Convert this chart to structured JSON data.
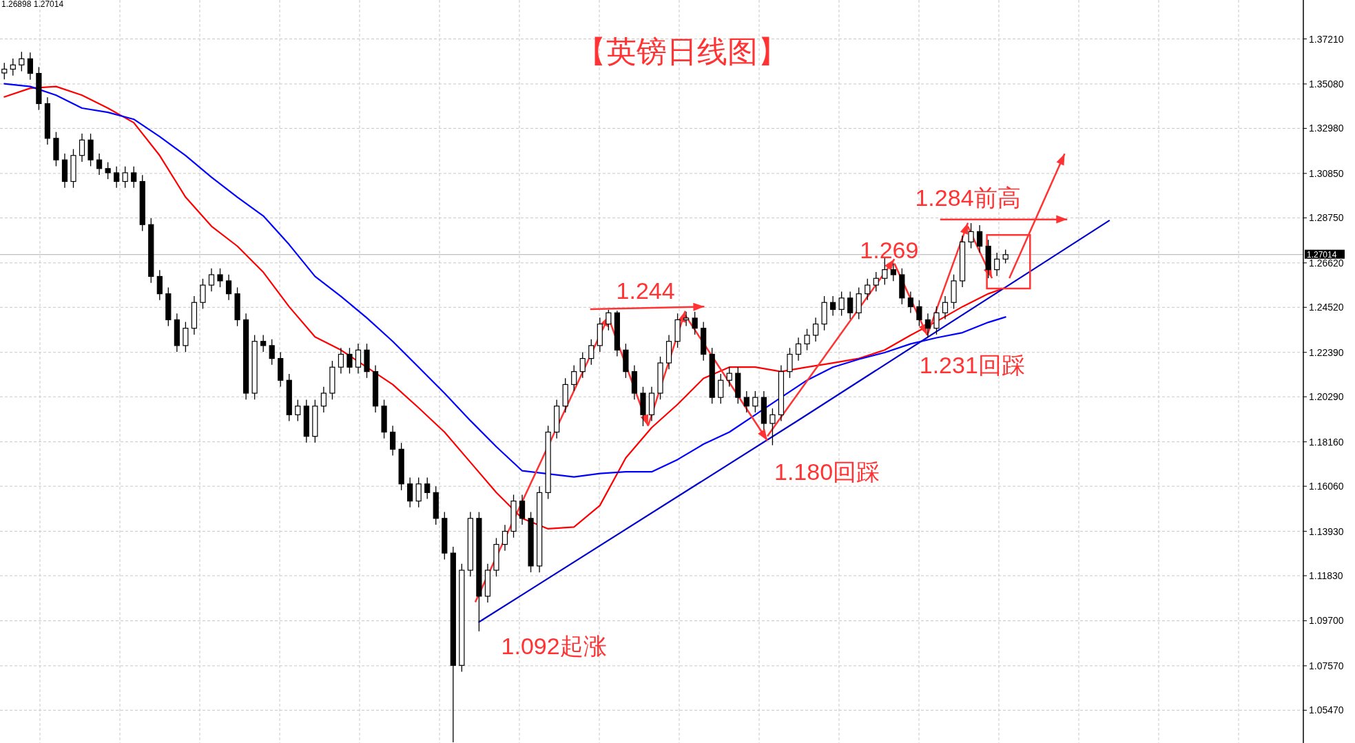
{
  "chart_data": {
    "type": "candlestick",
    "title": "【英镑日线图】",
    "categories": [
      null,
      null,
      null,
      null,
      null,
      null,
      null,
      null,
      null,
      null,
      null,
      null,
      null,
      null,
      null,
      null,
      null,
      null,
      null,
      null,
      null,
      null,
      null,
      null,
      null,
      null,
      null,
      null,
      null,
      null,
      null,
      null,
      null,
      null,
      null,
      null,
      null,
      null,
      null,
      null,
      null,
      null,
      null,
      null,
      null,
      null,
      null,
      null,
      null,
      null,
      null,
      null,
      null,
      null,
      null,
      null,
      null,
      null,
      null,
      null,
      null,
      null,
      null,
      null,
      null,
      null,
      null,
      null,
      null,
      null,
      null,
      null,
      null,
      null,
      null,
      null,
      null,
      null,
      null,
      null,
      null,
      null,
      null,
      null,
      null,
      null,
      null,
      null,
      null,
      null,
      null,
      null,
      null,
      null,
      null,
      null,
      null,
      null,
      null,
      null,
      null,
      null,
      null,
      null,
      null,
      null,
      null,
      null,
      null,
      null,
      null,
      null,
      null,
      null,
      null,
      null,
      null,
      null,
      null,
      null,
      null,
      null,
      null,
      null,
      null,
      null,
      null,
      null,
      null,
      null,
      null,
      null,
      null,
      null,
      null,
      null,
      null,
      null,
      null,
      null,
      null,
      null,
      null,
      null,
      null,
      null,
      null,
      null,
      null,
      null,
      null
    ],
    "ohlc": [
      [
        1.356,
        1.3608,
        1.353,
        1.3578
      ],
      [
        1.3578,
        1.3628,
        1.3548,
        1.3598
      ],
      [
        1.3598,
        1.366,
        1.3568,
        1.3627
      ],
      [
        1.3627,
        1.3657,
        1.3528,
        1.3558
      ],
      [
        1.3558,
        1.3588,
        1.3385,
        1.3415
      ],
      [
        1.3415,
        1.3445,
        1.3221,
        1.3251
      ],
      [
        1.3251,
        1.3281,
        1.3119,
        1.3149
      ],
      [
        1.3149,
        1.3179,
        1.3017,
        1.3047
      ],
      [
        1.3047,
        1.32,
        1.3017,
        1.317
      ],
      [
        1.317,
        1.3273,
        1.314,
        1.3243
      ],
      [
        1.3243,
        1.3273,
        1.3119,
        1.3149
      ],
      [
        1.3149,
        1.3179,
        1.3078,
        1.3108
      ],
      [
        1.3108,
        1.3138,
        1.3058,
        1.3088
      ],
      [
        1.3088,
        1.3118,
        1.3017,
        1.3047
      ],
      [
        1.3047,
        1.3118,
        1.3017,
        1.3088
      ],
      [
        1.3088,
        1.3118,
        1.3017,
        1.3047
      ],
      [
        1.3047,
        1.3077,
        1.2813,
        1.2843
      ],
      [
        1.2843,
        1.2873,
        1.2568,
        1.2598
      ],
      [
        1.2598,
        1.2628,
        1.2486,
        1.2516
      ],
      [
        1.2516,
        1.2546,
        1.2363,
        1.2393
      ],
      [
        1.2393,
        1.2423,
        1.2241,
        1.2271
      ],
      [
        1.2271,
        1.2383,
        1.2241,
        1.2353
      ],
      [
        1.2353,
        1.2505,
        1.2323,
        1.2475
      ],
      [
        1.2475,
        1.2587,
        1.2445,
        1.2557
      ],
      [
        1.2557,
        1.2636,
        1.2527,
        1.2606
      ],
      [
        1.2606,
        1.2636,
        1.2547,
        1.2577
      ],
      [
        1.2577,
        1.2607,
        1.2486,
        1.2516
      ],
      [
        1.2516,
        1.2546,
        1.2363,
        1.2393
      ],
      [
        1.2393,
        1.2423,
        1.2016,
        1.2046
      ],
      [
        1.2046,
        1.2321,
        1.2016,
        1.2291
      ],
      [
        1.2291,
        1.2321,
        1.2241,
        1.2271
      ],
      [
        1.2271,
        1.2301,
        1.218,
        1.221
      ],
      [
        1.221,
        1.224,
        1.2077,
        1.2107
      ],
      [
        1.2107,
        1.2137,
        1.1914,
        1.1944
      ],
      [
        1.1944,
        1.2015,
        1.1914,
        1.1985
      ],
      [
        1.1985,
        1.2015,
        1.1812,
        1.1842
      ],
      [
        1.1842,
        1.2015,
        1.1812,
        1.1985
      ],
      [
        1.1985,
        1.2076,
        1.1955,
        1.2046
      ],
      [
        1.2046,
        1.2199,
        1.2016,
        1.2169
      ],
      [
        1.2169,
        1.226,
        1.2139,
        1.223
      ],
      [
        1.223,
        1.226,
        1.2139,
        1.2169
      ],
      [
        1.2169,
        1.228,
        1.2139,
        1.225
      ],
      [
        1.225,
        1.228,
        1.2118,
        1.2148
      ],
      [
        1.2148,
        1.2178,
        1.1955,
        1.1985
      ],
      [
        1.1985,
        1.2015,
        1.1832,
        1.1862
      ],
      [
        1.1862,
        1.1892,
        1.1751,
        1.1781
      ],
      [
        1.1781,
        1.1811,
        1.1587,
        1.1617
      ],
      [
        1.1617,
        1.1647,
        1.1506,
        1.1536
      ],
      [
        1.1536,
        1.1647,
        1.1506,
        1.1617
      ],
      [
        1.1617,
        1.1647,
        1.1546,
        1.1576
      ],
      [
        1.1576,
        1.1606,
        1.1424,
        1.1454
      ],
      [
        1.1454,
        1.1484,
        1.126,
        1.129
      ],
      [
        1.129,
        1.132,
        1.0395,
        1.0759
      ],
      [
        1.0759,
        1.1239,
        1.0729,
        1.1209
      ],
      [
        1.1209,
        1.1484,
        1.1179,
        1.1454
      ],
      [
        1.1454,
        1.1484,
        1.092,
        1.1086
      ],
      [
        1.1086,
        1.1239,
        1.1056,
        1.1209
      ],
      [
        1.1209,
        1.1361,
        1.1179,
        1.1331
      ],
      [
        1.1331,
        1.1423,
        1.1301,
        1.1393
      ],
      [
        1.1393,
        1.1566,
        1.1363,
        1.1536
      ],
      [
        1.1536,
        1.1566,
        1.1424,
        1.1454
      ],
      [
        1.1454,
        1.1484,
        1.1199,
        1.1229
      ],
      [
        1.1229,
        1.1606,
        1.1199,
        1.1576
      ],
      [
        1.1576,
        1.1892,
        1.1546,
        1.1862
      ],
      [
        1.1862,
        1.2015,
        1.1832,
        1.1985
      ],
      [
        1.1985,
        1.2117,
        1.1955,
        1.2087
      ],
      [
        1.2087,
        1.2178,
        1.2057,
        1.2148
      ],
      [
        1.2148,
        1.224,
        1.2118,
        1.221
      ],
      [
        1.221,
        1.2301,
        1.218,
        1.2271
      ],
      [
        1.2271,
        1.2403,
        1.2241,
        1.2373
      ],
      [
        1.2373,
        1.244,
        1.2343,
        1.2426
      ],
      [
        1.2426,
        1.2436,
        1.222,
        1.225
      ],
      [
        1.225,
        1.228,
        1.2118,
        1.2148
      ],
      [
        1.2148,
        1.2178,
        1.2016,
        1.2046
      ],
      [
        1.2046,
        1.2076,
        1.189,
        1.1944
      ],
      [
        1.1944,
        1.2076,
        1.1914,
        1.2046
      ],
      [
        1.2046,
        1.2219,
        1.2016,
        1.2189
      ],
      [
        1.2189,
        1.2321,
        1.2159,
        1.2291
      ],
      [
        1.2291,
        1.2423,
        1.2261,
        1.2393
      ],
      [
        1.2393,
        1.2431,
        1.2363,
        1.2401
      ],
      [
        1.2401,
        1.2431,
        1.2323,
        1.2353
      ],
      [
        1.2353,
        1.2383,
        1.22,
        1.223
      ],
      [
        1.223,
        1.226,
        1.1996,
        1.2026
      ],
      [
        1.2026,
        1.2137,
        1.1996,
        1.2107
      ],
      [
        1.2107,
        1.217,
        1.2077,
        1.214
      ],
      [
        1.214,
        1.217,
        1.1996,
        1.2026
      ],
      [
        1.2026,
        1.2056,
        1.1955,
        1.1985
      ],
      [
        1.1985,
        1.2056,
        1.1955,
        1.2026
      ],
      [
        1.2026,
        1.2056,
        1.1873,
        1.1903
      ],
      [
        1.1903,
        1.1974,
        1.18,
        1.1944
      ],
      [
        1.1944,
        1.2178,
        1.1914,
        1.2148
      ],
      [
        1.2148,
        1.226,
        1.2118,
        1.223
      ],
      [
        1.223,
        1.2309,
        1.22,
        1.2279
      ],
      [
        1.2279,
        1.235,
        1.2249,
        1.232
      ],
      [
        1.232,
        1.2403,
        1.229,
        1.2373
      ],
      [
        1.2373,
        1.2505,
        1.2343,
        1.2475
      ],
      [
        1.2475,
        1.2505,
        1.2412,
        1.2442
      ],
      [
        1.2442,
        1.2526,
        1.2412,
        1.2496
      ],
      [
        1.2496,
        1.2526,
        1.2396,
        1.2426
      ],
      [
        1.2426,
        1.2546,
        1.2396,
        1.2516
      ],
      [
        1.2516,
        1.2587,
        1.2486,
        1.2557
      ],
      [
        1.2557,
        1.2619,
        1.2527,
        1.2589
      ],
      [
        1.2589,
        1.269,
        1.2559,
        1.263
      ],
      [
        1.263,
        1.266,
        1.2576,
        1.2606
      ],
      [
        1.2606,
        1.2636,
        1.2466,
        1.2496
      ],
      [
        1.2496,
        1.2526,
        1.2425,
        1.2455
      ],
      [
        1.2455,
        1.2485,
        1.2363,
        1.2393
      ],
      [
        1.2393,
        1.2423,
        1.231,
        1.2353
      ],
      [
        1.2353,
        1.2456,
        1.2323,
        1.2426
      ],
      [
        1.2426,
        1.2505,
        1.2396,
        1.2475
      ],
      [
        1.2475,
        1.2607,
        1.2445,
        1.2577
      ],
      [
        1.2577,
        1.2791,
        1.2547,
        1.2761
      ],
      [
        1.2761,
        1.285,
        1.2731,
        1.281
      ],
      [
        1.281,
        1.284,
        1.2711,
        1.2741
      ],
      [
        1.2741,
        1.2771,
        1.259,
        1.263
      ],
      [
        1.263,
        1.271,
        1.26,
        1.268
      ],
      [
        1.268,
        1.2725,
        1.266,
        1.2701
      ],
      null,
      null,
      null,
      null,
      null,
      null,
      null,
      null,
      null,
      null,
      null,
      null,
      null,
      null,
      null,
      null,
      null,
      null,
      null,
      null,
      null,
      null,
      null,
      null,
      null,
      null,
      null,
      null,
      null,
      null,
      null,
      null,
      null,
      null
    ],
    "series": [
      {
        "type": "line",
        "color": "#ff0000",
        "values": [
          1.3447,
          null,
          null,
          1.3488,
          null,
          null,
          1.3496,
          null,
          null,
          1.3455,
          null,
          null,
          1.3394,
          null,
          null,
          1.3325,
          null,
          null,
          1.317,
          null,
          null,
          1.2973,
          null,
          null,
          1.2835,
          null,
          null,
          1.2741,
          null,
          null,
          1.2618,
          null,
          null,
          1.2455,
          null,
          null,
          1.2312,
          null,
          null,
          1.225,
          null,
          null,
          null,
          null,
          null,
          1.2087,
          null,
          null,
          1.1977,
          null,
          null,
          1.1862,
          null,
          null,
          1.1719,
          null,
          null,
          1.1576,
          null,
          null,
          1.1454,
          null,
          null,
          1.1405,
          null,
          null,
          1.1413,
          null,
          null,
          1.1515,
          null,
          null,
          1.174,
          null,
          null,
          1.1883,
          null,
          null,
          1.1993,
          null,
          null,
          1.2116,
          null,
          null,
          1.2169,
          null,
          null,
          1.2169,
          null,
          null,
          1.2148,
          null,
          null,
          1.2169,
          null,
          null,
          1.2189,
          null,
          null,
          1.221,
          null,
          null,
          1.225,
          null,
          null,
          1.232,
          null,
          null,
          1.2385,
          null,
          null,
          1.2455,
          null,
          null,
          1.2516,
          null,
          1.2545,
          null,
          null,
          null,
          null,
          null,
          null,
          null,
          null,
          null,
          null,
          null,
          null,
          null,
          null,
          null,
          null,
          null,
          null,
          null,
          null,
          null,
          null,
          null,
          null,
          null,
          null,
          null,
          null,
          null,
          null,
          null,
          null,
          null,
          null
        ]
      },
      {
        "type": "line",
        "color": "#0000ff",
        "values": [
          1.3509,
          null,
          null,
          1.3496,
          null,
          null,
          1.3455,
          null,
          null,
          1.3394,
          null,
          null,
          1.3374,
          null,
          null,
          1.3341,
          null,
          null,
          1.3259,
          null,
          null,
          1.317,
          null,
          null,
          1.3067,
          null,
          null,
          1.2973,
          null,
          null,
          1.2884,
          null,
          null,
          1.2749,
          null,
          null,
          1.2598,
          null,
          null,
          1.2504,
          null,
          null,
          1.2402,
          null,
          null,
          1.2291,
          null,
          null,
          1.2169,
          null,
          null,
          1.2046,
          null,
          null,
          1.1916,
          null,
          null,
          1.1793,
          null,
          null,
          1.1679,
          null,
          null,
          null,
          null,
          null,
          1.165,
          null,
          null,
          1.1666,
          null,
          null,
          1.1674,
          null,
          null,
          1.1674,
          null,
          null,
          1.1732,
          null,
          null,
          1.1805,
          null,
          null,
          1.1862,
          null,
          null,
          1.1944,
          null,
          null,
          1.2026,
          null,
          null,
          1.2107,
          null,
          null,
          1.2169,
          null,
          null,
          1.2206,
          null,
          null,
          1.2238,
          null,
          null,
          1.2279,
          null,
          null,
          1.2308,
          null,
          null,
          1.2332,
          null,
          null,
          1.2381,
          null,
          1.2406,
          null,
          null,
          null,
          null,
          null,
          null,
          null,
          null,
          null,
          null,
          null,
          null,
          null,
          null,
          null,
          null,
          null,
          null,
          null,
          null,
          null,
          null,
          null,
          null,
          null,
          null,
          null,
          null,
          null,
          null,
          null,
          null,
          null,
          null
        ]
      },
      {
        "type": "line",
        "color": "#0000cc",
        "values": [
          null,
          null,
          null,
          null,
          null,
          null,
          null,
          null,
          null,
          null,
          null,
          null,
          null,
          null,
          null,
          null,
          null,
          null,
          null,
          null,
          null,
          null,
          null,
          null,
          null,
          null,
          null,
          null,
          null,
          null,
          null,
          null,
          null,
          null,
          null,
          null,
          null,
          null,
          null,
          null,
          null,
          null,
          null,
          null,
          null,
          null,
          null,
          null,
          null,
          null,
          null,
          null,
          null,
          null,
          null,
          1.0964,
          null,
          null,
          null,
          null,
          null,
          null,
          null,
          null,
          null,
          null,
          null,
          null,
          null,
          null,
          null,
          null,
          null,
          null,
          null,
          null,
          null,
          null,
          null,
          null,
          null,
          null,
          null,
          null,
          null,
          null,
          null,
          null,
          null,
          null,
          null,
          null,
          1.1918,
          null,
          null,
          null,
          null,
          null,
          null,
          null,
          null,
          null,
          null,
          null,
          null,
          null,
          null,
          null,
          null,
          null,
          null,
          null,
          null,
          null,
          null,
          null,
          null,
          null,
          null,
          null,
          null,
          null,
          null,
          null,
          null,
          null,
          null,
          null,
          1.2862,
          null,
          null,
          null,
          null,
          null,
          null,
          null,
          null,
          null,
          null,
          null,
          null,
          null,
          null,
          null,
          null,
          null,
          null,
          null,
          null,
          null,
          null
        ]
      }
    ],
    "annotations": [
      "1.26898 1.27014",
      "1.244",
      "1.269",
      "1.284前高",
      "1.092起涨",
      "1.180回踩",
      "1.231回踩"
    ],
    "ref_lines": [
      {
        "axis": "y",
        "value": 1.27014,
        "label": "1.27014",
        "color": "#c0c0c0"
      }
    ],
    "ylim": [
      1.0392,
      1.3905
    ],
    "yticks": [
      {
        "value": 1.3721,
        "label": "1.37210"
      },
      {
        "value": 1.3508,
        "label": "1.35080"
      },
      {
        "value": 1.3298,
        "label": "1.32980"
      },
      {
        "value": 1.3085,
        "label": "1.30850"
      },
      {
        "value": 1.2875,
        "label": "1.28750"
      },
      {
        "value": 1.2662,
        "label": "1.26620"
      },
      {
        "value": 1.2452,
        "label": "1.24520"
      },
      {
        "value": 1.2239,
        "label": "1.22390"
      },
      {
        "value": 1.2029,
        "label": "1.20290"
      },
      {
        "value": 1.1816,
        "label": "1.18160"
      },
      {
        "value": 1.1606,
        "label": "1.16060"
      },
      {
        "value": 1.1393,
        "label": "1.13930"
      },
      {
        "value": 1.1183,
        "label": "1.11830"
      },
      {
        "value": 1.097,
        "label": "1.09700"
      },
      {
        "value": 1.0757,
        "label": "1.07570"
      },
      {
        "value": 1.0547,
        "label": "1.05470"
      }
    ],
    "tick_labels": "y",
    "grid": true
  }
}
